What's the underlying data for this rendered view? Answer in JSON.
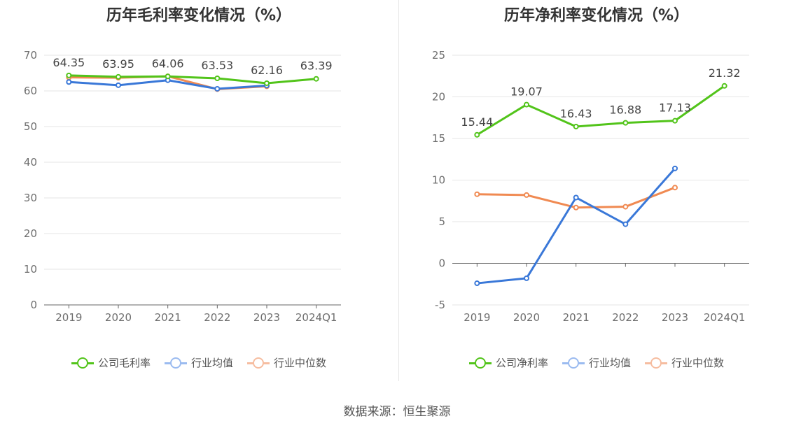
{
  "source_text": "数据来源：恒生聚源",
  "chart_data": [
    {
      "type": "line",
      "title": "历年毛利率变化情况（%）",
      "categories": [
        "2019",
        "2020",
        "2021",
        "2022",
        "2023",
        "2024Q1"
      ],
      "ylim": [
        0,
        70
      ],
      "yticks": [
        0,
        10,
        20,
        30,
        40,
        50,
        60,
        70
      ],
      "grid": true,
      "legend_position": "bottom",
      "series": [
        {
          "name": "公司毛利率",
          "color": "#52c41a",
          "values": [
            64.35,
            63.95,
            64.06,
            63.53,
            62.16,
            63.39
          ],
          "labels": [
            "64.35",
            "63.95",
            "64.06",
            "63.53",
            "62.16",
            "63.39"
          ]
        },
        {
          "name": "行业均值",
          "color": "#3a78d8",
          "values": [
            62.5,
            61.6,
            63.0,
            60.6,
            61.5,
            null
          ]
        },
        {
          "name": "行业中位数",
          "color": "#f08a52",
          "values": [
            63.8,
            63.7,
            64.1,
            60.5,
            61.3,
            null
          ]
        }
      ]
    },
    {
      "type": "line",
      "title": "历年净利率变化情况（%）",
      "categories": [
        "2019",
        "2020",
        "2021",
        "2022",
        "2023",
        "2024Q1"
      ],
      "ylim": [
        -5,
        25
      ],
      "yticks": [
        -5,
        0,
        5,
        10,
        15,
        20,
        25
      ],
      "grid": true,
      "legend_position": "bottom",
      "series": [
        {
          "name": "公司净利率",
          "color": "#52c41a",
          "values": [
            15.44,
            19.07,
            16.43,
            16.88,
            17.13,
            21.32
          ],
          "labels": [
            "15.44",
            "19.07",
            "16.43",
            "16.88",
            "17.13",
            "21.32"
          ]
        },
        {
          "name": "行业均值",
          "color": "#3a78d8",
          "values": [
            -2.4,
            -1.8,
            7.9,
            4.7,
            11.4,
            null
          ]
        },
        {
          "name": "行业中位数",
          "color": "#f08a52",
          "values": [
            8.3,
            8.2,
            6.7,
            6.8,
            9.1,
            null
          ]
        }
      ]
    }
  ]
}
